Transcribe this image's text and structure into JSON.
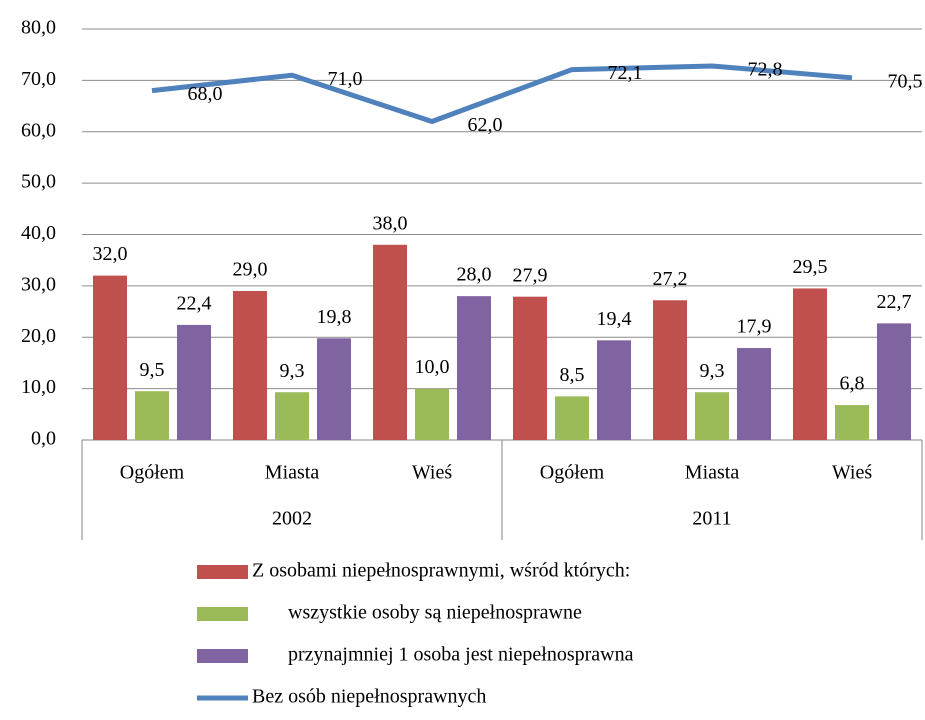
{
  "chart_data": {
    "type": "bar",
    "category_groups": [
      {
        "label": "2002",
        "categories": [
          "Ogółem",
          "Miasta",
          "Wieś"
        ]
      },
      {
        "label": "2011",
        "categories": [
          "Ogółem",
          "Miasta",
          "Wieś"
        ]
      }
    ],
    "series": [
      {
        "name": "Z osobami niepełnosprawnymi, wśród których:",
        "type": "bar",
        "color": "#c0504d",
        "values": [
          32.0,
          29.0,
          38.0,
          27.9,
          27.2,
          29.5
        ],
        "value_labels": [
          "32,0",
          "29,0",
          "38,0",
          "27,9",
          "27,2",
          "29,5"
        ]
      },
      {
        "name": "wszystkie osoby są niepełnosprawne",
        "type": "bar",
        "color": "#9bbb59",
        "values": [
          9.5,
          9.3,
          10.0,
          8.5,
          9.3,
          6.8
        ],
        "value_labels": [
          "9,5",
          "9,3",
          "10,0",
          "8,5",
          "9,3",
          "6,8"
        ]
      },
      {
        "name": "przynajmniej 1 osoba jest niepełnosprawna",
        "type": "bar",
        "color": "#8064a2",
        "values": [
          22.4,
          19.8,
          28.0,
          19.4,
          17.9,
          22.7
        ],
        "value_labels": [
          "22,4",
          "19,8",
          "28,0",
          "19,4",
          "17,9",
          "22,7"
        ]
      },
      {
        "name": "Bez osób niepełnosprawnych",
        "type": "line",
        "color": "#4f81bd",
        "values": [
          68.0,
          71.0,
          62.0,
          72.1,
          72.8,
          70.5
        ],
        "value_labels": [
          "68,0",
          "71,0",
          "62,0",
          "72,1",
          "72,8",
          "70,5"
        ]
      }
    ],
    "ylim": [
      0,
      80
    ],
    "yticks": [
      {
        "value": 0,
        "label": "0,0"
      },
      {
        "value": 10,
        "label": "10,0"
      },
      {
        "value": 20,
        "label": "20,0"
      },
      {
        "value": 30,
        "label": "30,0"
      },
      {
        "value": 40,
        "label": "40,0"
      },
      {
        "value": 50,
        "label": "50,0"
      },
      {
        "value": 60,
        "label": "60,0"
      },
      {
        "value": 70,
        "label": "70,0"
      },
      {
        "value": 80,
        "label": "80,0"
      }
    ],
    "grid": true,
    "legend": "bottom"
  }
}
